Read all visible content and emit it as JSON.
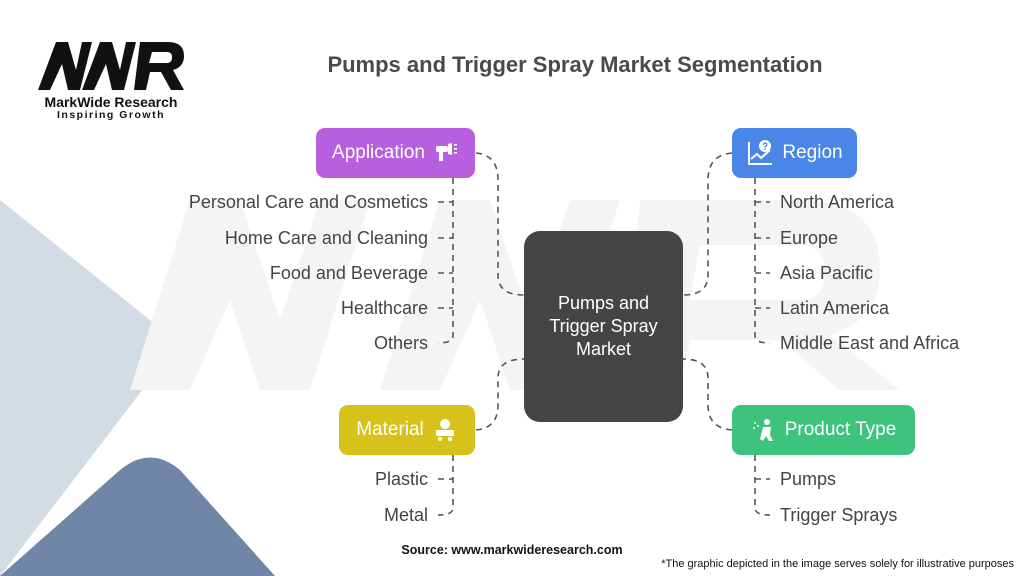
{
  "title": "Pumps and Trigger Spray Market Segmentation",
  "logo": {
    "mark": "MWR",
    "name": "MarkWide Research",
    "tagline": "Inspiring Growth"
  },
  "center": "Pumps and Trigger Spray Market",
  "categories": {
    "application": {
      "label": "Application",
      "icon": "spray-gun-icon",
      "color": "#b660e0",
      "items": [
        "Personal Care and Cosmetics",
        "Home Care and Cleaning",
        "Food and Beverage",
        "Healthcare",
        "Others"
      ]
    },
    "region": {
      "label": "Region",
      "icon": "chart-question-icon",
      "color": "#4a86e8",
      "items": [
        "North America",
        "Europe",
        "Asia Pacific",
        "Latin America",
        "Middle East and Africa"
      ]
    },
    "material": {
      "label": "Material",
      "icon": "materials-cart-icon",
      "color": "#d6c21b",
      "items": [
        "Plastic",
        "Metal"
      ]
    },
    "product_type": {
      "label": "Product Type",
      "icon": "person-spraying-icon",
      "color": "#3dc37c",
      "items": [
        "Pumps",
        "Trigger Sprays"
      ]
    }
  },
  "source": "Source: www.markwideresearch.com",
  "footnote": "*The graphic depicted in the image serves solely for illustrative purposes"
}
